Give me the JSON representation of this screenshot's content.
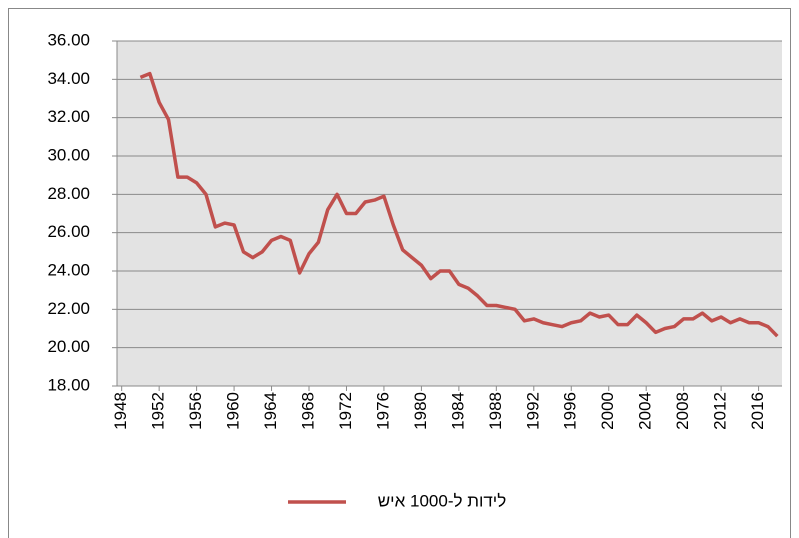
{
  "chart_data": {
    "type": "line",
    "x": [
      1950,
      1951,
      1952,
      1953,
      1954,
      1955,
      1956,
      1957,
      1958,
      1959,
      1960,
      1961,
      1962,
      1963,
      1964,
      1965,
      1966,
      1967,
      1968,
      1969,
      1970,
      1971,
      1972,
      1973,
      1974,
      1975,
      1976,
      1977,
      1978,
      1979,
      1980,
      1981,
      1982,
      1983,
      1984,
      1985,
      1986,
      1987,
      1988,
      1989,
      1990,
      1991,
      1992,
      1993,
      1994,
      1995,
      1996,
      1997,
      1998,
      1999,
      2000,
      2001,
      2002,
      2003,
      2004,
      2005,
      2006,
      2007,
      2008,
      2009,
      2010,
      2011,
      2012,
      2013,
      2014,
      2015,
      2016,
      2017,
      2018
    ],
    "series": [
      {
        "name": "לידות ל-1000 איש",
        "color": "#c0504d",
        "values": [
          34.1,
          34.3,
          32.8,
          31.9,
          28.9,
          28.9,
          28.6,
          28.0,
          26.3,
          26.5,
          26.4,
          25.0,
          24.7,
          25.0,
          25.6,
          25.8,
          25.6,
          23.9,
          24.9,
          25.5,
          27.2,
          28.0,
          27.0,
          27.0,
          27.6,
          27.7,
          27.9,
          26.4,
          25.1,
          24.7,
          24.3,
          23.6,
          24.0,
          24.0,
          23.3,
          23.1,
          22.7,
          22.2,
          22.2,
          22.1,
          22.0,
          21.4,
          21.5,
          21.3,
          21.2,
          21.1,
          21.3,
          21.4,
          21.8,
          21.6,
          21.7,
          21.2,
          21.2,
          21.7,
          21.3,
          20.8,
          21.0,
          21.1,
          21.5,
          21.5,
          21.8,
          21.4,
          21.6,
          21.3,
          21.5,
          21.3,
          21.3,
          21.1,
          20.6
        ]
      }
    ],
    "xlim": [
      1947.5,
      2018.5
    ],
    "xticks": [
      1948,
      1952,
      1956,
      1960,
      1964,
      1968,
      1972,
      1976,
      1980,
      1984,
      1988,
      1992,
      1996,
      2000,
      2004,
      2008,
      2012,
      2016
    ],
    "ylim": [
      18,
      36
    ],
    "yticks": [
      {
        "value": 18,
        "label": "18.00"
      },
      {
        "value": 20,
        "label": "20.00"
      },
      {
        "value": 22,
        "label": "22.00"
      },
      {
        "value": 24,
        "label": "24.00"
      },
      {
        "value": 26,
        "label": "26.00"
      },
      {
        "value": 28,
        "label": "28.00"
      },
      {
        "value": 30,
        "label": "30.00"
      },
      {
        "value": 32,
        "label": "32.00"
      },
      {
        "value": 34,
        "label": "34.00"
      },
      {
        "value": 36,
        "label": "36.00"
      }
    ],
    "grid": true,
    "legend": "bottom"
  }
}
